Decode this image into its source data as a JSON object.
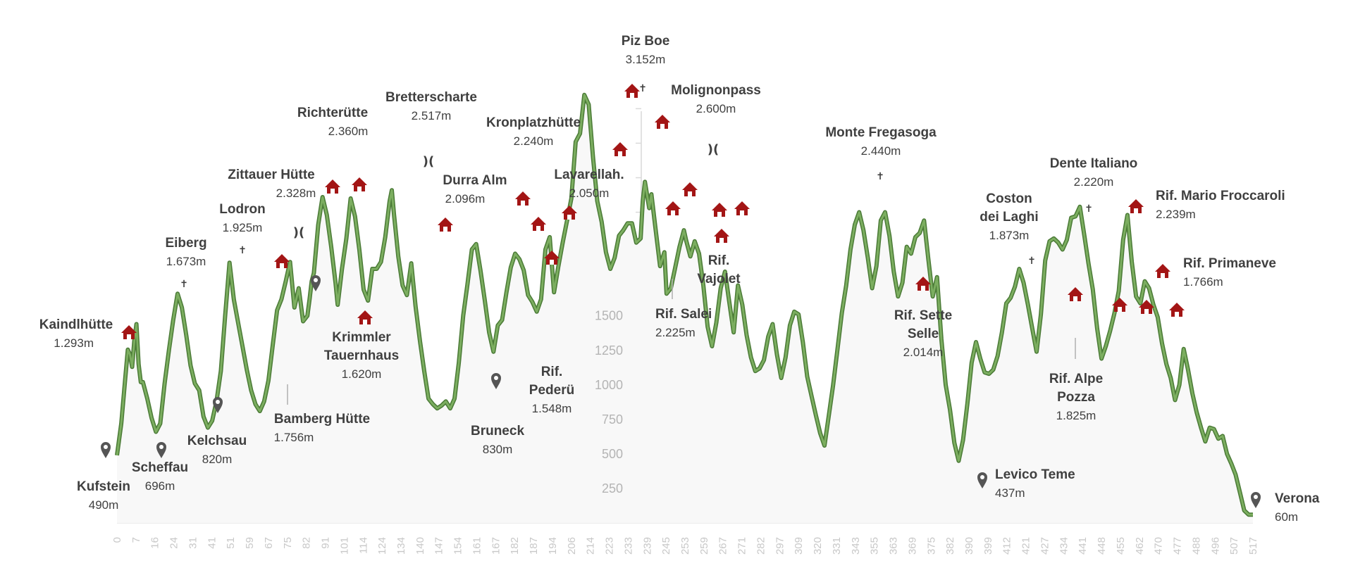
{
  "chart_data": {
    "type": "area",
    "xlim": [
      0,
      525
    ],
    "ylim": [
      0,
      3400
    ],
    "y_ticks": [
      250,
      500,
      750,
      1000,
      1250,
      1500
    ],
    "x_ticks": [
      "0",
      "7",
      "16",
      "24",
      "31",
      "41",
      "51",
      "59",
      "67",
      "75",
      "82",
      "91",
      "101",
      "114",
      "124",
      "134",
      "140",
      "147",
      "154",
      "161",
      "167",
      "182",
      "187",
      "194",
      "206",
      "214",
      "223",
      "233",
      "239",
      "245",
      "253",
      "259",
      "267",
      "271",
      "282",
      "297",
      "309",
      "320",
      "331",
      "343",
      "355",
      "363",
      "369",
      "375",
      "382",
      "390",
      "399",
      "412",
      "421",
      "427",
      "434",
      "441",
      "448",
      "455",
      "462",
      "470",
      "477",
      "488",
      "496",
      "507",
      "517"
    ],
    "series_color": "#5f9146",
    "profile": [
      [
        0,
        490
      ],
      [
        2,
        720
      ],
      [
        4,
        1080
      ],
      [
        5,
        1255
      ],
      [
        6,
        1220
      ],
      [
        7,
        1130
      ],
      [
        8,
        1320
      ],
      [
        9,
        1440
      ],
      [
        10,
        1150
      ],
      [
        11,
        1020
      ],
      [
        12,
        1020
      ],
      [
        14,
        900
      ],
      [
        16,
        760
      ],
      [
        18,
        660
      ],
      [
        20,
        720
      ],
      [
        22,
        1010
      ],
      [
        24,
        1250
      ],
      [
        26,
        1470
      ],
      [
        28,
        1660
      ],
      [
        30,
        1560
      ],
      [
        32,
        1360
      ],
      [
        34,
        1140
      ],
      [
        36,
        1010
      ],
      [
        38,
        960
      ],
      [
        40,
        770
      ],
      [
        41,
        730
      ],
      [
        42,
        690
      ],
      [
        44,
        740
      ],
      [
        46,
        880
      ],
      [
        48,
        1100
      ],
      [
        50,
        1500
      ],
      [
        52,
        1885
      ],
      [
        54,
        1620
      ],
      [
        56,
        1450
      ],
      [
        58,
        1280
      ],
      [
        60,
        1110
      ],
      [
        62,
        960
      ],
      [
        64,
        860
      ],
      [
        66,
        810
      ],
      [
        68,
        880
      ],
      [
        70,
        1030
      ],
      [
        72,
        1290
      ],
      [
        74,
        1540
      ],
      [
        76,
        1620
      ],
      [
        78,
        1750
      ],
      [
        80,
        1890
      ],
      [
        82,
        1560
      ],
      [
        84,
        1700
      ],
      [
        86,
        1460
      ],
      [
        88,
        1500
      ],
      [
        89,
        1620
      ],
      [
        90,
        1750
      ],
      [
        91,
        1810
      ],
      [
        93,
        2160
      ],
      [
        95,
        2360
      ],
      [
        97,
        2230
      ],
      [
        99,
        2000
      ],
      [
        101,
        1740
      ],
      [
        102,
        1580
      ],
      [
        104,
        1840
      ],
      [
        106,
        2060
      ],
      [
        108,
        2350
      ],
      [
        110,
        2220
      ],
      [
        112,
        1980
      ],
      [
        114,
        1690
      ],
      [
        116,
        1610
      ],
      [
        118,
        1840
      ],
      [
        120,
        1840
      ],
      [
        122,
        1890
      ],
      [
        124,
        2070
      ],
      [
        126,
        2330
      ],
      [
        127,
        2410
      ],
      [
        128,
        2240
      ],
      [
        130,
        1930
      ],
      [
        132,
        1720
      ],
      [
        134,
        1650
      ],
      [
        136,
        1880
      ],
      [
        138,
        1570
      ],
      [
        140,
        1320
      ],
      [
        142,
        1100
      ],
      [
        144,
        900
      ],
      [
        146,
        860
      ],
      [
        148,
        830
      ],
      [
        150,
        850
      ],
      [
        152,
        880
      ],
      [
        154,
        830
      ],
      [
        156,
        900
      ],
      [
        158,
        1160
      ],
      [
        160,
        1500
      ],
      [
        162,
        1730
      ],
      [
        164,
        1980
      ],
      [
        166,
        2020
      ],
      [
        168,
        1830
      ],
      [
        170,
        1610
      ],
      [
        172,
        1380
      ],
      [
        174,
        1240
      ],
      [
        176,
        1430
      ],
      [
        178,
        1470
      ],
      [
        180,
        1670
      ],
      [
        182,
        1850
      ],
      [
        184,
        1950
      ],
      [
        186,
        1910
      ],
      [
        188,
        1830
      ],
      [
        190,
        1650
      ],
      [
        192,
        1600
      ],
      [
        194,
        1530
      ],
      [
        196,
        1620
      ],
      [
        198,
        1980
      ],
      [
        200,
        2070
      ],
      [
        202,
        1670
      ],
      [
        204,
        1860
      ],
      [
        206,
        2030
      ],
      [
        208,
        2190
      ],
      [
        210,
        2350
      ],
      [
        212,
        2760
      ],
      [
        214,
        2820
      ],
      [
        216,
        3100
      ],
      [
        218,
        3030
      ],
      [
        220,
        2650
      ],
      [
        222,
        2330
      ],
      [
        224,
        2180
      ],
      [
        226,
        1960
      ],
      [
        228,
        1840
      ],
      [
        230,
        1920
      ],
      [
        232,
        2080
      ],
      [
        234,
        2120
      ],
      [
        236,
        2170
      ],
      [
        238,
        2170
      ],
      [
        240,
        2030
      ],
      [
        242,
        2060
      ],
      [
        243,
        2330
      ],
      [
        244,
        2470
      ],
      [
        246,
        2280
      ],
      [
        247,
        2380
      ],
      [
        249,
        2120
      ],
      [
        251,
        1860
      ],
      [
        253,
        1960
      ],
      [
        254,
        1660
      ],
      [
        256,
        1700
      ],
      [
        258,
        1850
      ],
      [
        260,
        2000
      ],
      [
        262,
        2120
      ],
      [
        263,
        2050
      ],
      [
        265,
        1930
      ],
      [
        267,
        2040
      ],
      [
        269,
        1950
      ],
      [
        271,
        1720
      ],
      [
        273,
        1420
      ],
      [
        275,
        1280
      ],
      [
        277,
        1450
      ],
      [
        279,
        1700
      ],
      [
        281,
        1820
      ],
      [
        283,
        1600
      ],
      [
        285,
        1380
      ],
      [
        287,
        1720
      ],
      [
        289,
        1580
      ],
      [
        291,
        1360
      ],
      [
        293,
        1200
      ],
      [
        295,
        1100
      ],
      [
        297,
        1120
      ],
      [
        299,
        1180
      ],
      [
        301,
        1350
      ],
      [
        303,
        1440
      ],
      [
        305,
        1220
      ],
      [
        307,
        1050
      ],
      [
        309,
        1200
      ],
      [
        311,
        1430
      ],
      [
        313,
        1530
      ],
      [
        315,
        1510
      ],
      [
        317,
        1310
      ],
      [
        319,
        1060
      ],
      [
        321,
        920
      ],
      [
        323,
        780
      ],
      [
        325,
        650
      ],
      [
        327,
        560
      ],
      [
        329,
        780
      ],
      [
        331,
        1000
      ],
      [
        333,
        1260
      ],
      [
        335,
        1520
      ],
      [
        337,
        1720
      ],
      [
        339,
        1980
      ],
      [
        341,
        2160
      ],
      [
        343,
        2250
      ],
      [
        345,
        2120
      ],
      [
        347,
        1920
      ],
      [
        349,
        1700
      ],
      [
        351,
        1860
      ],
      [
        353,
        2190
      ],
      [
        355,
        2250
      ],
      [
        357,
        2080
      ],
      [
        359,
        1820
      ],
      [
        361,
        1640
      ],
      [
        363,
        1740
      ],
      [
        365,
        2000
      ],
      [
        367,
        1950
      ],
      [
        369,
        2070
      ],
      [
        371,
        2100
      ],
      [
        373,
        2190
      ],
      [
        375,
        1910
      ],
      [
        377,
        1640
      ],
      [
        379,
        1780
      ],
      [
        381,
        1330
      ],
      [
        383,
        1000
      ],
      [
        385,
        820
      ],
      [
        387,
        580
      ],
      [
        389,
        450
      ],
      [
        391,
        600
      ],
      [
        393,
        860
      ],
      [
        395,
        1160
      ],
      [
        397,
        1310
      ],
      [
        399,
        1190
      ],
      [
        401,
        1090
      ],
      [
        403,
        1080
      ],
      [
        405,
        1110
      ],
      [
        407,
        1210
      ],
      [
        409,
        1380
      ],
      [
        411,
        1590
      ],
      [
        413,
        1630
      ],
      [
        415,
        1710
      ],
      [
        417,
        1840
      ],
      [
        419,
        1740
      ],
      [
        421,
        1580
      ],
      [
        423,
        1410
      ],
      [
        425,
        1240
      ],
      [
        427,
        1510
      ],
      [
        429,
        1900
      ],
      [
        431,
        2040
      ],
      [
        433,
        2060
      ],
      [
        435,
        2030
      ],
      [
        437,
        1980
      ],
      [
        439,
        2050
      ],
      [
        441,
        2210
      ],
      [
        443,
        2220
      ],
      [
        445,
        2290
      ],
      [
        447,
        2090
      ],
      [
        449,
        1880
      ],
      [
        451,
        1690
      ],
      [
        453,
        1410
      ],
      [
        455,
        1190
      ],
      [
        457,
        1280
      ],
      [
        459,
        1390
      ],
      [
        461,
        1520
      ],
      [
        463,
        1680
      ],
      [
        465,
        2050
      ],
      [
        467,
        2230
      ],
      [
        469,
        1890
      ],
      [
        471,
        1640
      ],
      [
        473,
        1590
      ],
      [
        475,
        1750
      ],
      [
        477,
        1700
      ],
      [
        479,
        1580
      ],
      [
        481,
        1490
      ],
      [
        483,
        1300
      ],
      [
        485,
        1150
      ],
      [
        487,
        1050
      ],
      [
        489,
        890
      ],
      [
        491,
        1000
      ],
      [
        493,
        1260
      ],
      [
        495,
        1110
      ],
      [
        497,
        940
      ],
      [
        499,
        800
      ],
      [
        501,
        690
      ],
      [
        503,
        590
      ],
      [
        505,
        690
      ],
      [
        507,
        680
      ],
      [
        509,
        610
      ],
      [
        511,
        630
      ],
      [
        513,
        500
      ],
      [
        515,
        430
      ],
      [
        517,
        350
      ],
      [
        519,
        220
      ],
      [
        521,
        90
      ],
      [
        523,
        60
      ],
      [
        525,
        60
      ]
    ],
    "summits": [
      {
        "name": "Kaindlhütte",
        "value": "1.293m"
      },
      {
        "name": "Eiberg",
        "value": "1.673m"
      },
      {
        "name": "Lodron",
        "value": "1.925m"
      },
      {
        "name": "Zittauer Hütte",
        "value": "2.328m"
      },
      {
        "name": "Richterütte",
        "value": "2.360m"
      },
      {
        "name": "Bretterscharte",
        "value": "2.517m"
      },
      {
        "name": "Durra Alm",
        "value": "2.096m"
      },
      {
        "name": "Kronplatzhütte",
        "value": "2.240m"
      },
      {
        "name": "Lavarellah.",
        "value": "2.050m"
      },
      {
        "name": "Piz Boe",
        "value": "3.152m"
      },
      {
        "name": "Molignonpass",
        "value": "2.600m"
      },
      {
        "name": "Monte Fregasoga",
        "value": "2.440m"
      },
      {
        "name": "Coston dei Laghi",
        "value": "1.873m"
      },
      {
        "name": "Dente Italiano",
        "value": "2.220m"
      },
      {
        "name": "Rif. Mario Froccaroli",
        "value": "2.239m"
      },
      {
        "name": "Rif. Primaneve",
        "value": "1.766m"
      }
    ],
    "valleys": [
      {
        "name": "Kufstein",
        "value": "490m"
      },
      {
        "name": "Scheffau",
        "value": "696m"
      },
      {
        "name": "Kelchsau",
        "value": "820m"
      },
      {
        "name": "Bamberg Hütte",
        "value": "1.756m"
      },
      {
        "name": "Krimmler Tauernhaus",
        "value": "1.620m"
      },
      {
        "name": "Bruneck",
        "value": "830m"
      },
      {
        "name": "Rif. Pederü",
        "value": "1.548m"
      },
      {
        "name": "Rif. Salei",
        "value": "2.225m"
      },
      {
        "name": "Rif. Vajolet",
        "value": ""
      },
      {
        "name": "Rif. Sette Selle",
        "value": "2.014m"
      },
      {
        "name": "Levico Teme",
        "value": "437m"
      },
      {
        "name": "Rif. Alpe Pozza",
        "value": "1.825m"
      },
      {
        "name": "Verona",
        "value": "60m"
      }
    ],
    "symbols": {
      "cross": "✝",
      "pass": ")("
    },
    "icons": [
      "hut-icon",
      "location-pin-icon",
      "summit-cross-icon",
      "pass-icon"
    ]
  }
}
